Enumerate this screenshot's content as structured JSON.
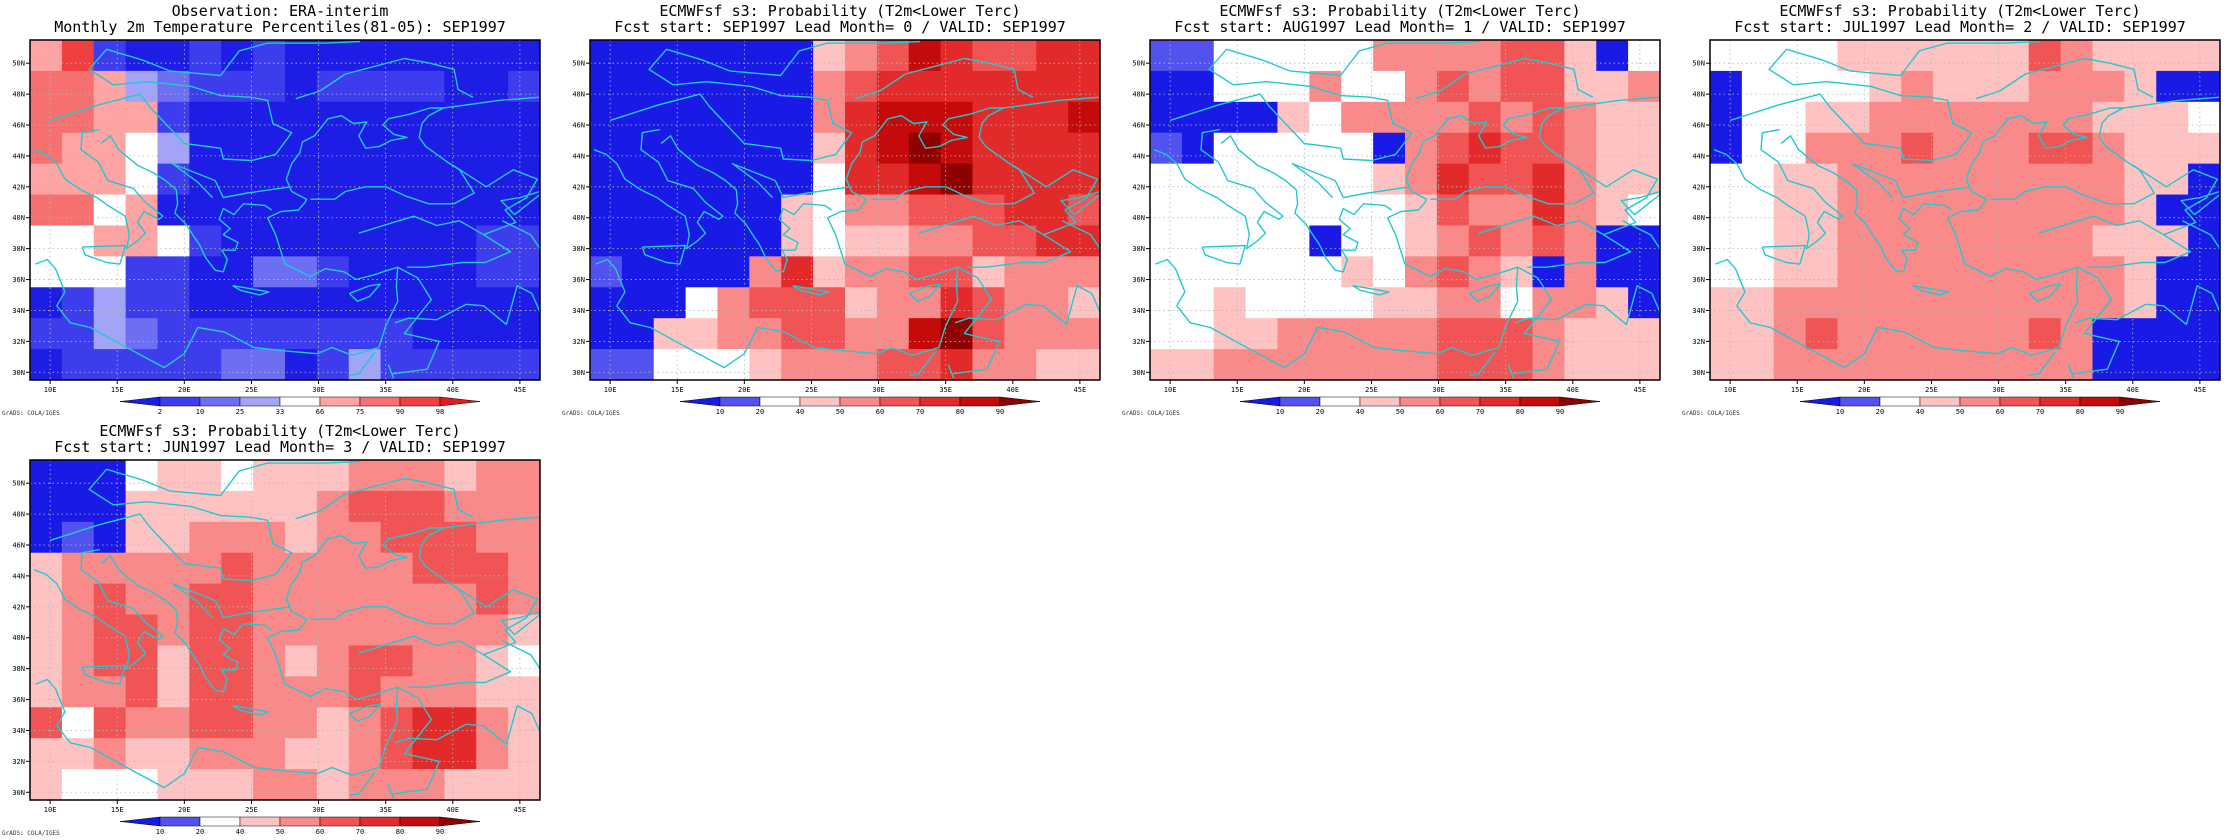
{
  "colors": {
    "coast": "#22c9cf",
    "gridline": "#b8b8b8",
    "frame": "#000000",
    "obs_scale": [
      "#1d1de6",
      "#3d3ded",
      "#6e6ef2",
      "#a3a3f7",
      "#ffffff",
      "#ffa3a3",
      "#f77070",
      "#ee4040",
      "#e21c1c"
    ],
    "prob_scale": [
      "#1a1ae6",
      "#5252ee",
      "#ffffff",
      "#ffc2c2",
      "#fa8a8a",
      "#f05454",
      "#e22a2a",
      "#c40a0a",
      "#8f0000"
    ]
  },
  "colorbars": {
    "obs": [
      "2",
      "10",
      "25",
      "33",
      "66",
      "75",
      "90",
      "98"
    ],
    "prob": [
      "10",
      "20",
      "40",
      "50",
      "60",
      "70",
      "80",
      "90"
    ]
  },
  "axes": {
    "lon": [
      "10E",
      "15E",
      "20E",
      "25E",
      "30E",
      "35E",
      "40E",
      "45E"
    ],
    "lat": [
      "30N",
      "32N",
      "34N",
      "36N",
      "38N",
      "40N",
      "42N",
      "44N",
      "46N",
      "48N",
      "50N"
    ]
  },
  "grads_label": "GrADS: COLA/IGES",
  "panels": [
    {
      "title1": "Observation: ERA-interim",
      "title2": "Monthly 2m Temperature Percentiles(81-05): SEP1997",
      "scale": "obs",
      "grid": [
        [
          5,
          7,
          1,
          0,
          0,
          1,
          0,
          1,
          0,
          0,
          0,
          0,
          0,
          0,
          0,
          0
        ],
        [
          6,
          6,
          5,
          3,
          2,
          1,
          1,
          1,
          0,
          1,
          1,
          1,
          1,
          0,
          0,
          1
        ],
        [
          6,
          6,
          5,
          5,
          1,
          0,
          0,
          0,
          0,
          0,
          0,
          0,
          0,
          0,
          0,
          0
        ],
        [
          6,
          5,
          5,
          4,
          3,
          0,
          0,
          0,
          0,
          0,
          0,
          0,
          0,
          0,
          0,
          0
        ],
        [
          5,
          5,
          5,
          4,
          1,
          0,
          0,
          0,
          0,
          0,
          0,
          0,
          0,
          0,
          0,
          0
        ],
        [
          6,
          6,
          4,
          5,
          0,
          0,
          0,
          0,
          0,
          0,
          0,
          0,
          0,
          0,
          0,
          0
        ],
        [
          4,
          4,
          5,
          5,
          4,
          1,
          0,
          0,
          0,
          0,
          0,
          0,
          0,
          0,
          1,
          1
        ],
        [
          4,
          4,
          4,
          1,
          1,
          0,
          0,
          2,
          2,
          1,
          0,
          0,
          0,
          0,
          1,
          1
        ],
        [
          0,
          1,
          3,
          1,
          1,
          0,
          0,
          0,
          0,
          0,
          0,
          0,
          0,
          0,
          0,
          0
        ],
        [
          1,
          1,
          3,
          2,
          1,
          1,
          1,
          1,
          1,
          1,
          1,
          1,
          0,
          0,
          0,
          0
        ],
        [
          0,
          1,
          1,
          1,
          1,
          1,
          2,
          2,
          0,
          1,
          3,
          1,
          1,
          1,
          1,
          1
        ]
      ]
    },
    {
      "title1": "ECMWFsf s3: Probability (T2m<Lower Terc)",
      "title2": "Fcst start: SEP1997  Lead Month= 0 / VALID: SEP1997",
      "scale": "prob",
      "grid": [
        [
          0,
          0,
          0,
          0,
          0,
          0,
          0,
          3,
          4,
          5,
          7,
          6,
          5,
          5,
          6,
          6
        ],
        [
          0,
          0,
          0,
          0,
          0,
          0,
          0,
          4,
          5,
          6,
          6,
          6,
          6,
          6,
          6,
          6
        ],
        [
          0,
          0,
          0,
          0,
          0,
          0,
          0,
          4,
          6,
          7,
          7,
          7,
          6,
          6,
          6,
          7
        ],
        [
          0,
          0,
          0,
          0,
          0,
          0,
          0,
          3,
          6,
          7,
          8,
          7,
          6,
          6,
          6,
          6
        ],
        [
          0,
          0,
          0,
          0,
          0,
          0,
          0,
          2,
          6,
          6,
          7,
          8,
          6,
          6,
          6,
          6
        ],
        [
          0,
          0,
          0,
          0,
          0,
          0,
          3,
          2,
          4,
          4,
          5,
          5,
          5,
          6,
          6,
          5
        ],
        [
          0,
          0,
          0,
          0,
          0,
          0,
          3,
          2,
          3,
          3,
          4,
          4,
          5,
          5,
          6,
          6
        ],
        [
          1,
          0,
          0,
          0,
          0,
          4,
          6,
          3,
          4,
          4,
          5,
          5,
          3,
          4,
          4,
          4
        ],
        [
          0,
          0,
          0,
          2,
          4,
          5,
          5,
          5,
          3,
          4,
          4,
          6,
          5,
          4,
          4,
          3
        ],
        [
          0,
          0,
          3,
          3,
          4,
          4,
          5,
          5,
          4,
          4,
          7,
          8,
          5,
          4,
          4,
          4
        ],
        [
          1,
          1,
          2,
          2,
          2,
          3,
          4,
          4,
          4,
          5,
          5,
          6,
          4,
          4,
          3,
          3
        ]
      ]
    },
    {
      "title1": "ECMWFsf s3: Probability (T2m<Lower Terc)",
      "title2": "Fcst start: AUG1997  Lead Month= 1 / VALID: SEP1997",
      "scale": "prob",
      "grid": [
        [
          1,
          1,
          2,
          2,
          2,
          2,
          2,
          4,
          4,
          4,
          4,
          5,
          5,
          3,
          0,
          2
        ],
        [
          0,
          0,
          2,
          2,
          2,
          4,
          2,
          2,
          4,
          5,
          4,
          5,
          5,
          3,
          3,
          4
        ],
        [
          0,
          0,
          0,
          0,
          3,
          2,
          4,
          4,
          4,
          4,
          5,
          4,
          5,
          4,
          3,
          3
        ],
        [
          1,
          0,
          2,
          2,
          2,
          2,
          2,
          0,
          4,
          5,
          6,
          5,
          5,
          4,
          3,
          3
        ],
        [
          2,
          2,
          2,
          2,
          2,
          2,
          2,
          3,
          4,
          6,
          5,
          5,
          6,
          4,
          3,
          3
        ],
        [
          2,
          2,
          2,
          2,
          2,
          2,
          2,
          2,
          3,
          5,
          4,
          4,
          6,
          4,
          3,
          2
        ],
        [
          2,
          2,
          2,
          2,
          2,
          0,
          2,
          2,
          3,
          4,
          5,
          4,
          5,
          4,
          0,
          0
        ],
        [
          2,
          2,
          2,
          2,
          2,
          2,
          3,
          2,
          4,
          5,
          4,
          3,
          0,
          4,
          0,
          0
        ],
        [
          2,
          2,
          3,
          2,
          2,
          2,
          2,
          3,
          3,
          4,
          4,
          2,
          4,
          4,
          3,
          0
        ],
        [
          2,
          2,
          3,
          3,
          4,
          4,
          4,
          4,
          4,
          5,
          5,
          5,
          4,
          3,
          3,
          3
        ],
        [
          3,
          3,
          4,
          4,
          4,
          4,
          4,
          4,
          4,
          5,
          5,
          5,
          4,
          3,
          3,
          3
        ]
      ]
    },
    {
      "title1": "ECMWFsf s3: Probability (T2m<Lower Terc)",
      "title2": "Fcst start: JUL1997  Lead Month= 2 / VALID: SEP1997",
      "scale": "prob",
      "grid": [
        [
          2,
          2,
          2,
          2,
          3,
          3,
          3,
          3,
          3,
          3,
          5,
          4,
          3,
          3,
          3,
          3
        ],
        [
          0,
          2,
          2,
          2,
          2,
          3,
          4,
          3,
          3,
          3,
          4,
          4,
          4,
          3,
          0,
          0
        ],
        [
          0,
          2,
          2,
          3,
          3,
          4,
          4,
          4,
          4,
          4,
          4,
          4,
          3,
          3,
          3,
          2
        ],
        [
          0,
          2,
          2,
          4,
          4,
          4,
          5,
          4,
          4,
          4,
          5,
          5,
          4,
          3,
          3,
          3
        ],
        [
          2,
          2,
          3,
          3,
          4,
          4,
          4,
          4,
          4,
          4,
          4,
          4,
          4,
          3,
          3,
          0
        ],
        [
          2,
          2,
          3,
          3,
          4,
          4,
          4,
          4,
          4,
          4,
          4,
          4,
          4,
          3,
          0,
          0
        ],
        [
          2,
          2,
          3,
          3,
          4,
          4,
          4,
          4,
          4,
          4,
          4,
          4,
          3,
          3,
          3,
          0
        ],
        [
          2,
          2,
          3,
          3,
          4,
          4,
          4,
          4,
          4,
          4,
          4,
          4,
          4,
          3,
          0,
          0
        ],
        [
          3,
          3,
          4,
          4,
          4,
          4,
          4,
          4,
          4,
          4,
          4,
          4,
          4,
          3,
          0,
          0
        ],
        [
          3,
          3,
          4,
          5,
          4,
          4,
          4,
          4,
          4,
          4,
          5,
          4,
          0,
          0,
          0,
          0
        ],
        [
          3,
          3,
          4,
          4,
          4,
          4,
          4,
          4,
          4,
          4,
          4,
          4,
          0,
          0,
          0,
          0
        ]
      ]
    },
    {
      "title1": "ECMWFsf s3: Probability (T2m<Lower Terc)",
      "title2": "Fcst start: JUN1997  Lead Month= 3 / VALID: SEP1997",
      "scale": "prob",
      "grid": [
        [
          0,
          0,
          0,
          2,
          3,
          3,
          2,
          3,
          3,
          3,
          4,
          4,
          4,
          3,
          4,
          4
        ],
        [
          0,
          0,
          0,
          3,
          3,
          3,
          3,
          3,
          3,
          4,
          5,
          5,
          5,
          4,
          4,
          4
        ],
        [
          0,
          1,
          0,
          3,
          3,
          4,
          4,
          4,
          3,
          4,
          4,
          5,
          5,
          5,
          4,
          4
        ],
        [
          3,
          4,
          4,
          4,
          4,
          4,
          5,
          4,
          4,
          4,
          4,
          4,
          5,
          5,
          5,
          4
        ],
        [
          3,
          4,
          5,
          4,
          4,
          5,
          5,
          4,
          4,
          4,
          4,
          4,
          4,
          4,
          5,
          4
        ],
        [
          3,
          4,
          5,
          5,
          4,
          5,
          5,
          4,
          4,
          4,
          4,
          4,
          4,
          4,
          4,
          3
        ],
        [
          3,
          4,
          5,
          5,
          3,
          5,
          5,
          4,
          3,
          4,
          5,
          5,
          4,
          4,
          3,
          2
        ],
        [
          3,
          4,
          4,
          5,
          3,
          5,
          5,
          4,
          4,
          4,
          5,
          4,
          4,
          4,
          3,
          3
        ],
        [
          5,
          2,
          5,
          4,
          4,
          5,
          5,
          4,
          4,
          3,
          4,
          5,
          6,
          6,
          4,
          3
        ],
        [
          3,
          3,
          4,
          3,
          3,
          4,
          4,
          4,
          3,
          3,
          4,
          5,
          6,
          6,
          4,
          3
        ],
        [
          3,
          2,
          2,
          2,
          3,
          3,
          3,
          4,
          4,
          3,
          4,
          4,
          4,
          3,
          3,
          3
        ]
      ]
    }
  ]
}
